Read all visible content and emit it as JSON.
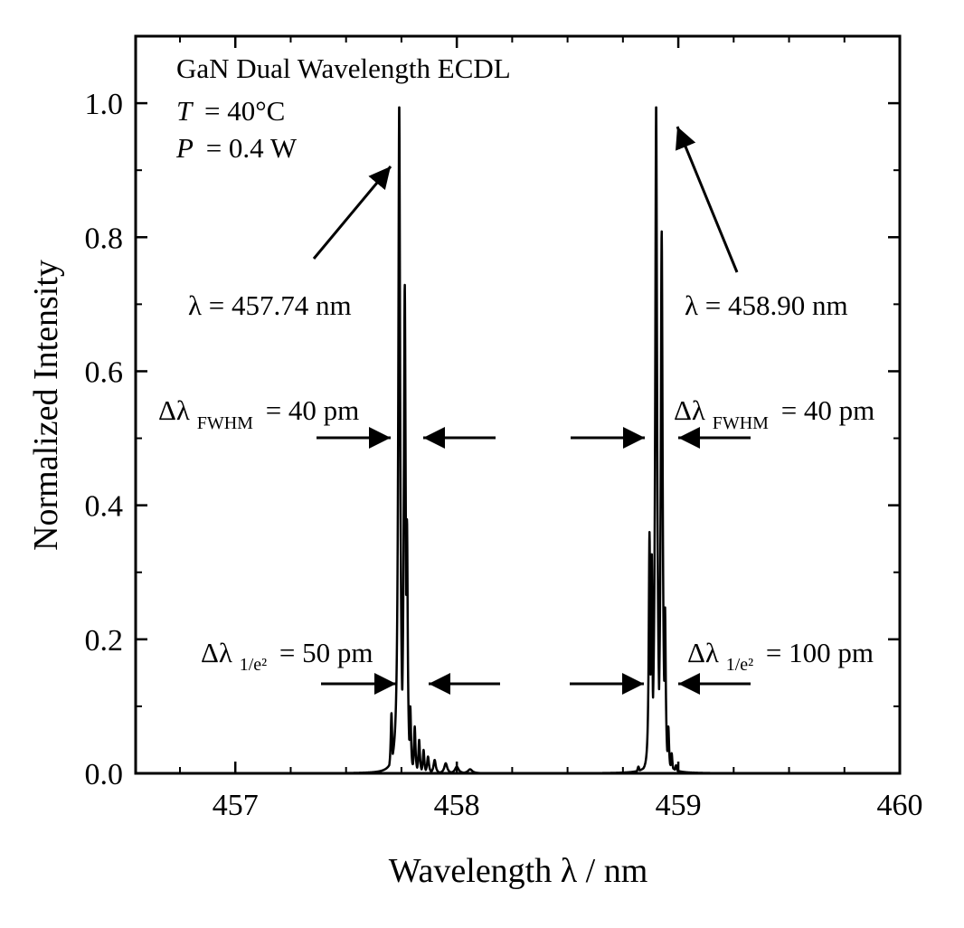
{
  "chart_data": {
    "type": "line",
    "title": "",
    "xlabel": "Wavelength λ / nm",
    "ylabel": "Normalized Intensity",
    "xlim": [
      456.55,
      460.0
    ],
    "ylim": [
      0.0,
      1.1
    ],
    "x_ticks": [
      457,
      458,
      459,
      460
    ],
    "x_tick_labels": [
      "457",
      "458",
      "459",
      "460"
    ],
    "y_ticks": [
      0.0,
      0.2,
      0.4,
      0.6,
      0.8,
      1.0
    ],
    "y_tick_labels": [
      "0.0",
      "0.2",
      "0.4",
      "0.6",
      "0.8",
      "1.0"
    ],
    "grid": false,
    "series": [
      {
        "name": "GaN Dual Wavelength ECDL spectrum",
        "color": "#000000",
        "peaks": [
          {
            "x": 457.705,
            "y": 0.09,
            "w": 0.004
          },
          {
            "x": 457.74,
            "y": 1.0,
            "w": 0.005
          },
          {
            "x": 457.765,
            "y": 0.73,
            "w": 0.005
          },
          {
            "x": 457.775,
            "y": 0.38,
            "w": 0.004
          },
          {
            "x": 457.79,
            "y": 0.1,
            "w": 0.004
          },
          {
            "x": 457.81,
            "y": 0.07,
            "w": 0.004
          },
          {
            "x": 457.83,
            "y": 0.05,
            "w": 0.004
          },
          {
            "x": 457.85,
            "y": 0.035,
            "w": 0.004
          },
          {
            "x": 457.87,
            "y": 0.025,
            "w": 0.005
          },
          {
            "x": 457.9,
            "y": 0.02,
            "w": 0.006
          },
          {
            "x": 457.95,
            "y": 0.015,
            "w": 0.008
          },
          {
            "x": 458.0,
            "y": 0.01,
            "w": 0.01
          },
          {
            "x": 458.06,
            "y": 0.006,
            "w": 0.012
          },
          {
            "x": 458.82,
            "y": 0.01,
            "w": 0.005
          },
          {
            "x": 458.86,
            "y": 0.035,
            "w": 0.004
          },
          {
            "x": 458.87,
            "y": 0.36,
            "w": 0.004
          },
          {
            "x": 458.88,
            "y": 0.33,
            "w": 0.004
          },
          {
            "x": 458.9,
            "y": 1.0,
            "w": 0.005
          },
          {
            "x": 458.925,
            "y": 0.81,
            "w": 0.005
          },
          {
            "x": 458.94,
            "y": 0.25,
            "w": 0.004
          },
          {
            "x": 458.955,
            "y": 0.07,
            "w": 0.004
          },
          {
            "x": 458.97,
            "y": 0.03,
            "w": 0.004
          },
          {
            "x": 458.99,
            "y": 0.012,
            "w": 0.005
          }
        ]
      }
    ],
    "info_box": {
      "title": "GaN Dual Wavelength ECDL",
      "T_var": "T",
      "T_value": "= 40°C",
      "P_var": "P",
      "P_value": "= 0.4 W"
    },
    "annotations": {
      "peak1_label": "λ = 457.74 nm",
      "peak2_label": "λ = 458.90 nm",
      "fwhm_symbol": "Δλ",
      "fwhm_sub": "FWHM",
      "fwhm_left_value": "= 40 pm",
      "fwhm_right_value": "= 40 pm",
      "e2_symbol": "Δλ",
      "e2_sub": "1/e²",
      "e2_left_value": "= 50 pm",
      "e2_right_value": "= 100 pm"
    }
  }
}
